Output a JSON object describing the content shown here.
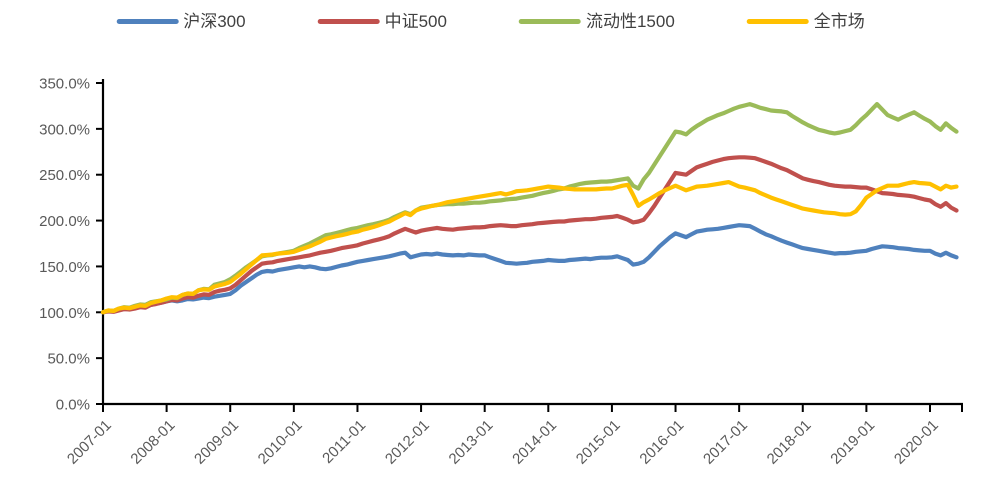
{
  "chart_data": {
    "type": "line",
    "title": "",
    "xlabel": "",
    "ylabel": "",
    "y_unit": "%",
    "ylim": [
      0,
      350
    ],
    "y_tick_step": 50,
    "y_tick_labels": [
      "0.0%",
      "50.0%",
      "100.0%",
      "150.0%",
      "200.0%",
      "250.0%",
      "300.0%",
      "350.0%"
    ],
    "x_tick_labels": [
      "2007-01",
      "2008-01",
      "2009-01",
      "2010-01",
      "2011-01",
      "2012-01",
      "2013-01",
      "2014-01",
      "2015-01",
      "2016-01",
      "2017-01",
      "2018-01",
      "2019-01",
      "2020-01"
    ],
    "x_start": "2007-01",
    "x_end": "2020-06",
    "x_interval": "1 month",
    "x_points": 162,
    "grid": false,
    "legend_position": "top",
    "axis_color": "#000000",
    "tick_label_color": "#595959",
    "series": [
      {
        "id": "hs300",
        "name": "沪深300",
        "color": "#4F81BD",
        "values": [
          100,
          101.5,
          101,
          103,
          104.5,
          104,
          105,
          106.5,
          106,
          108,
          109.5,
          110.5,
          112,
          113,
          112,
          113,
          114.5,
          114,
          115,
          116,
          115.5,
          117,
          118,
          119,
          120,
          124,
          129,
          133,
          137,
          141,
          144,
          145,
          144.5,
          146,
          147,
          148,
          149,
          150,
          149,
          150,
          149,
          147.5,
          147,
          148,
          149.5,
          151,
          152,
          153.5,
          155,
          156,
          157,
          158,
          159,
          160,
          161,
          162.5,
          164,
          165,
          160,
          161.5,
          163,
          163.5,
          163,
          164,
          163,
          162.5,
          162,
          162.5,
          162,
          163,
          162.5,
          162,
          162,
          160,
          158,
          156,
          154,
          153.5,
          153,
          153.5,
          154,
          155,
          155.5,
          156,
          157,
          156.5,
          156,
          156,
          157,
          157.5,
          158,
          158.5,
          158,
          159,
          159.5,
          159.5,
          160,
          161,
          159,
          157,
          152,
          153,
          155,
          160,
          166,
          172,
          177,
          182,
          186,
          184,
          182,
          185,
          188,
          189,
          190,
          190.5,
          191,
          192,
          193,
          194,
          195,
          194.5,
          194,
          191,
          188,
          185,
          183,
          180.5,
          178,
          176,
          174,
          172,
          170,
          169,
          168,
          167,
          166,
          165,
          164,
          164.5,
          164.5,
          165,
          166,
          166.5,
          167,
          169,
          170.5,
          172,
          171.5,
          171,
          170,
          169.5,
          169,
          168,
          167.5,
          167,
          167,
          164,
          162,
          165,
          162,
          160
        ]
      },
      {
        "id": "zz500",
        "name": "中证500",
        "color": "#C0504D",
        "values": [
          100,
          101,
          100.5,
          102,
          103.5,
          103,
          104,
          105.5,
          105,
          108,
          109,
          110.5,
          112,
          113.5,
          113,
          115,
          116.5,
          116,
          118,
          119.5,
          119,
          122,
          123.5,
          124.5,
          126,
          130,
          135,
          140,
          145,
          149,
          153,
          154,
          154.5,
          156,
          157,
          158,
          159,
          160,
          161,
          162,
          163.5,
          165,
          166,
          167,
          168.5,
          170,
          171,
          172,
          173,
          175,
          176.5,
          178,
          179.5,
          181,
          183,
          186,
          188.5,
          191,
          189,
          187,
          189,
          190,
          191,
          192,
          191,
          190.5,
          190,
          191,
          191.5,
          192,
          192.5,
          192.5,
          193,
          194,
          194.5,
          195,
          194.5,
          194,
          194,
          195,
          195.5,
          196,
          197,
          197.5,
          198,
          198.5,
          199,
          199,
          200,
          200.5,
          201,
          201.5,
          201.5,
          202,
          203,
          203.5,
          204,
          205,
          203,
          201,
          198,
          199,
          201,
          208,
          216,
          225,
          234,
          243,
          252,
          251,
          250,
          254,
          258,
          260,
          262,
          264,
          265.5,
          267,
          268,
          268.5,
          269,
          269,
          268.5,
          268,
          266,
          264,
          262,
          259.5,
          257,
          255,
          252,
          249,
          246,
          244.5,
          243,
          242,
          240.5,
          239,
          238,
          237.5,
          237,
          237,
          236.5,
          236,
          236,
          234,
          232,
          230,
          229.5,
          229,
          228,
          227.5,
          227,
          226,
          224.5,
          223,
          222,
          218,
          215,
          219,
          214,
          211
        ]
      },
      {
        "id": "liq1500",
        "name": "流动性1500",
        "color": "#9BBB59",
        "values": [
          100,
          102,
          101.5,
          104,
          105.5,
          105,
          107,
          108.5,
          108,
          111,
          112,
          113,
          114,
          116,
          115.5,
          119,
          120.5,
          120,
          124,
          125.5,
          125,
          130,
          131.5,
          133,
          136,
          140,
          144.5,
          149,
          153,
          157,
          161,
          162,
          162.5,
          164,
          165,
          166,
          167,
          170,
          172.5,
          175,
          178,
          181,
          184,
          185,
          186.5,
          188,
          189.5,
          191,
          192,
          193.5,
          195,
          196,
          197.5,
          199,
          201,
          204,
          206.5,
          209,
          207,
          211,
          214,
          215,
          216,
          217,
          217.5,
          218,
          218,
          218.5,
          218.5,
          219,
          219.5,
          219.5,
          220,
          221,
          221.5,
          222,
          223,
          223.5,
          224,
          225,
          226,
          227,
          228.5,
          230,
          231,
          232.5,
          234,
          235,
          237,
          238.5,
          240,
          241,
          241.5,
          242,
          242.5,
          242.5,
          243,
          244,
          245,
          246,
          238,
          235,
          245,
          252,
          261,
          270,
          279,
          288,
          297,
          296,
          294,
          299,
          303,
          306.5,
          310,
          312.5,
          315,
          317,
          319.5,
          322,
          324,
          325.5,
          327,
          325,
          323,
          321.5,
          320,
          319.5,
          319,
          318,
          314,
          310.5,
          307,
          304,
          301.5,
          299,
          297.5,
          296,
          295,
          296,
          297.5,
          299,
          304,
          310,
          315,
          321,
          327,
          321,
          315,
          312.5,
          310,
          313,
          315.5,
          318,
          314.5,
          311,
          308,
          303,
          299,
          306,
          301,
          297
        ]
      },
      {
        "id": "all-market",
        "name": "全市场",
        "color": "#FFC000",
        "values": [
          100,
          102,
          101.5,
          104,
          105,
          104.5,
          106,
          107.5,
          107,
          110,
          111.5,
          113,
          115,
          116.5,
          116,
          119,
          120.5,
          120,
          124,
          125,
          124.5,
          128,
          129.5,
          131,
          133,
          137.5,
          142,
          147,
          152,
          157,
          162,
          162.5,
          163,
          164,
          164.5,
          165,
          166,
          168,
          170,
          172,
          174.5,
          177,
          180,
          181.5,
          183,
          184,
          185.5,
          187,
          188,
          190,
          191.5,
          193,
          195,
          197,
          199,
          202,
          205,
          208,
          206,
          211,
          213,
          214.5,
          216,
          217,
          218.5,
          220,
          221,
          222,
          223,
          224,
          225,
          226,
          227,
          228,
          229,
          230,
          228.5,
          230,
          232,
          232.5,
          233,
          234,
          235,
          236,
          237,
          236.5,
          236,
          235,
          234.5,
          234,
          234,
          234,
          234,
          234,
          234.5,
          235,
          235,
          236.5,
          238,
          239,
          228,
          216,
          220,
          223,
          226.5,
          230,
          233,
          235.5,
          238,
          235.5,
          233,
          235,
          237,
          237.5,
          238,
          239,
          240,
          241,
          242,
          239.5,
          237,
          236,
          234.5,
          233,
          230,
          227.5,
          225,
          223,
          221,
          219,
          217,
          215,
          213,
          212,
          211,
          210,
          209,
          208.5,
          208,
          207,
          206.5,
          207,
          210,
          217,
          225,
          229,
          233,
          235.5,
          238,
          238,
          238,
          239.5,
          241,
          242,
          241,
          240.5,
          240,
          237,
          234,
          238,
          236,
          237
        ]
      }
    ]
  }
}
